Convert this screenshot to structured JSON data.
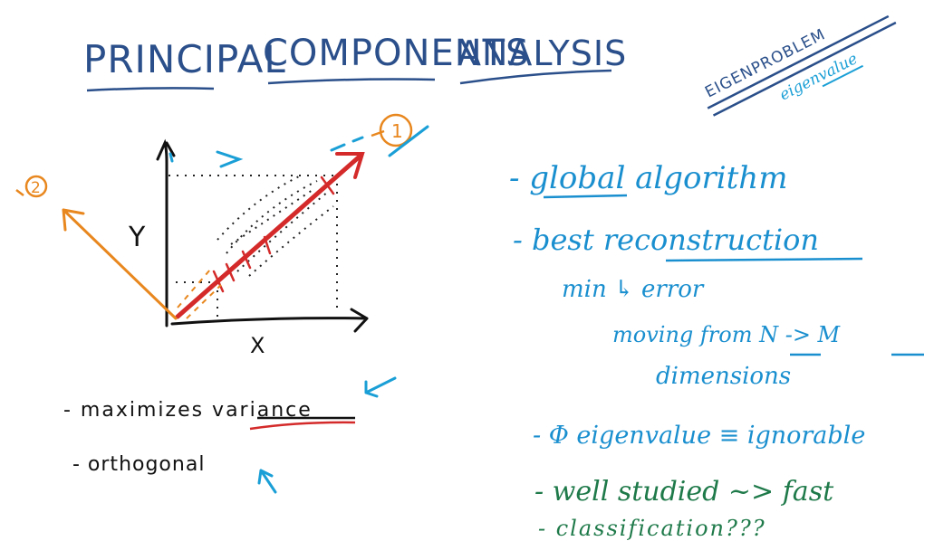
{
  "title": {
    "words": [
      "PRINCIPAL",
      "COMPONENTS",
      "ANALYSIS"
    ],
    "color": "#2a4f8a"
  },
  "corner_note": {
    "top": "EIGENPROBLEM",
    "bottom": "eigenvalue",
    "top_color": "#2a4f8a",
    "bottom_color": "#1a9fd6"
  },
  "diagram": {
    "y_axis_label": "Y",
    "x_axis_label": "X",
    "component_1_label": "1",
    "component_2_label": "2",
    "axis_color": "#111111",
    "pc1_color": "#d42a2a",
    "pc2_color": "#e8871e",
    "accent_color": "#1a9fd6"
  },
  "left_notes": {
    "items": [
      "- maximizes variance",
      "- orthogonal"
    ],
    "underlined_word": "variance",
    "color": "#111111",
    "underline_color": "#d42a2a"
  },
  "right_notes": {
    "color_blue": "#1a8fcf",
    "color_green": "#1f7a4a",
    "lines": [
      {
        "key": "global",
        "text": "- global algorithm"
      },
      {
        "key": "best",
        "text": "- best reconstruction"
      },
      {
        "key": "min",
        "text": "min ↳ error"
      },
      {
        "key": "moving",
        "text": "moving from N -> M"
      },
      {
        "key": "dimensions",
        "text": "dimensions"
      },
      {
        "key": "phi",
        "text": "- Φ eigenvalue ≡ ignorable"
      },
      {
        "key": "studied",
        "text": "- well studied ~> fast"
      },
      {
        "key": "classification",
        "text": "- classification???"
      }
    ]
  }
}
